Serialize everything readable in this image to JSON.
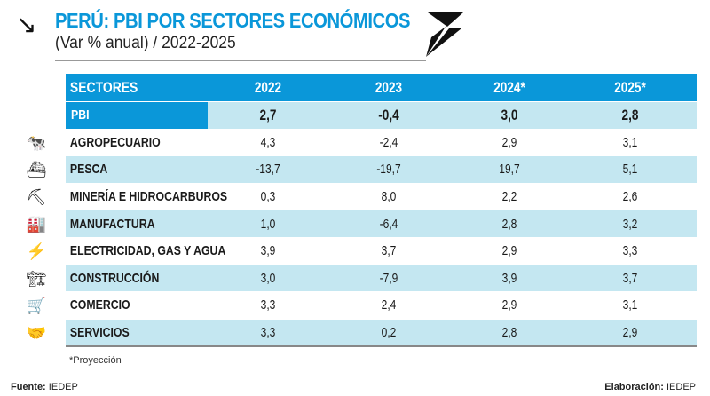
{
  "header": {
    "title": "PERÚ: PBI POR SECTORES ECONÓMICOS",
    "subtitle": "(Var % anual) / 2022-2025"
  },
  "table": {
    "columns": [
      "SECTORES",
      "2022",
      "2023",
      "2024*",
      "2025*"
    ],
    "rows": [
      {
        "sector": "PBI",
        "icon": "none",
        "values": [
          "2,7",
          "-0,4",
          "3,0",
          "2,8"
        ]
      },
      {
        "sector": "AGROPECUARIO",
        "icon": "livestock-icon",
        "values": [
          "4,3",
          "-2,4",
          "2,9",
          "3,1"
        ]
      },
      {
        "sector": "PESCA",
        "icon": "fishing-boat-icon",
        "values": [
          "-13,7",
          "-19,7",
          "19,7",
          "5,1"
        ]
      },
      {
        "sector": "MINERÍA E HIDROCARBUROS",
        "icon": "mining-icon",
        "values": [
          "0,3",
          "8,0",
          "2,2",
          "2,6"
        ]
      },
      {
        "sector": "MANUFACTURA",
        "icon": "factory-icon",
        "values": [
          "1,0",
          "-6,4",
          "2,8",
          "3,2"
        ]
      },
      {
        "sector": "ELECTRICIDAD, GAS Y AGUA",
        "icon": "electricity-icon",
        "values": [
          "3,9",
          "3,7",
          "2,9",
          "3,3"
        ]
      },
      {
        "sector": "CONSTRUCCIÓN",
        "icon": "crane-icon",
        "values": [
          "3,0",
          "-7,9",
          "3,9",
          "3,7"
        ]
      },
      {
        "sector": "COMERCIO",
        "icon": "shopping-cart-icon",
        "values": [
          "3,3",
          "2,4",
          "2,9",
          "3,1"
        ]
      },
      {
        "sector": "SERVICIOS",
        "icon": "services-icon",
        "values": [
          "3,3",
          "0,2",
          "2,8",
          "2,9"
        ]
      }
    ]
  },
  "footer": {
    "note": "*Proyección",
    "source_label": "Fuente:",
    "source": "IEDEP",
    "credit_label": "Elaboración:",
    "credit": "IEDEP"
  },
  "colors": {
    "accent": "#0a97d9",
    "stripe": "#c4e7f1"
  }
}
